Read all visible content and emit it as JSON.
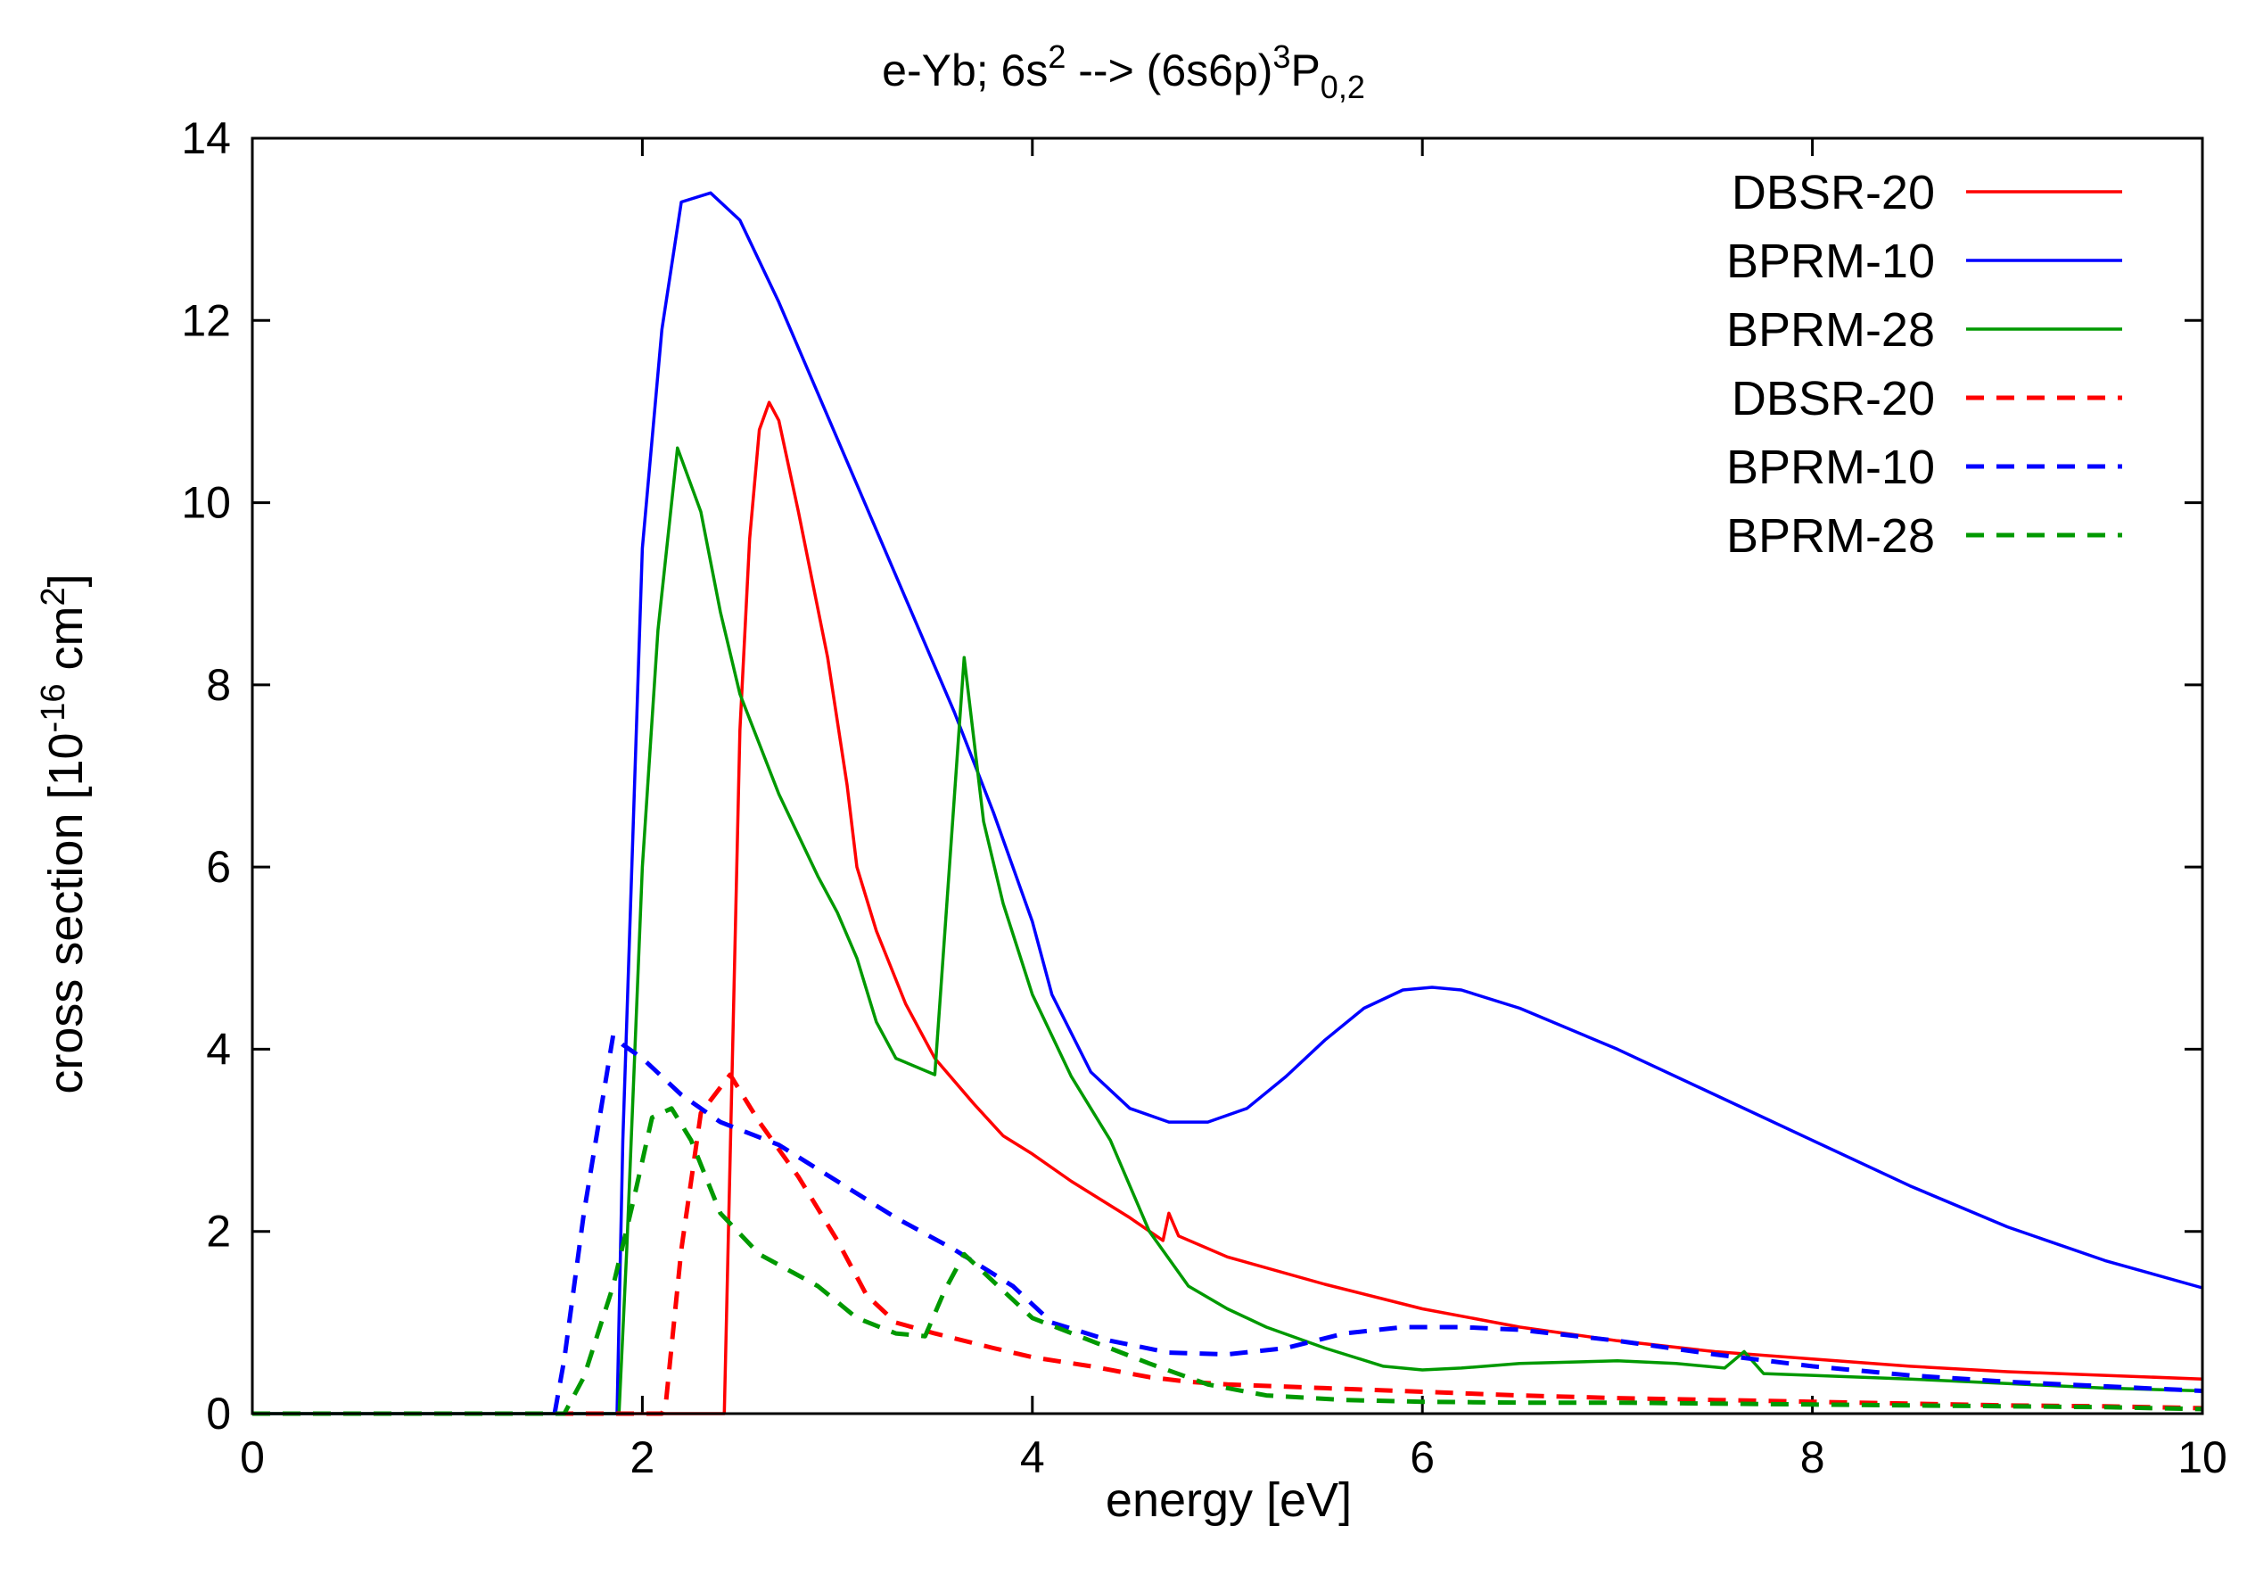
{
  "chart_data": {
    "type": "line",
    "title": {
      "pre": "e-Yb; 6s",
      "sup1": "2",
      "mid": " --> (6s6p)",
      "sup2": "3",
      "base": "P",
      "sub": "0,2"
    },
    "xlabel": "energy [eV]",
    "ylabel": {
      "pre": "cross section [10",
      "sup1": "-16",
      "mid": " cm",
      "sup2": "2",
      "post": "]"
    },
    "xlim": [
      0,
      10
    ],
    "ylim": [
      0,
      14
    ],
    "xticks": [
      0,
      2,
      4,
      6,
      8,
      10
    ],
    "yticks": [
      0,
      2,
      4,
      6,
      8,
      10,
      12,
      14
    ],
    "xtick_labels": [
      "0",
      "2",
      "4",
      "6",
      "8",
      "10"
    ],
    "ytick_labels": [
      "0",
      "2",
      "4",
      "6",
      "8",
      "10",
      "12",
      "14"
    ],
    "grid": false,
    "legend_position": "top-right",
    "series": [
      {
        "name": "DBSR-20",
        "color": "#ff0000",
        "dash": "solid",
        "points": [
          [
            0,
            0
          ],
          [
            2.4,
            0
          ],
          [
            2.42,
            0
          ],
          [
            2.5,
            7.5
          ],
          [
            2.55,
            9.6
          ],
          [
            2.6,
            10.8
          ],
          [
            2.65,
            11.1
          ],
          [
            2.7,
            10.9
          ],
          [
            2.8,
            9.9
          ],
          [
            2.95,
            8.3
          ],
          [
            3.05,
            6.9
          ],
          [
            3.1,
            6.0
          ],
          [
            3.2,
            5.3
          ],
          [
            3.35,
            4.5
          ],
          [
            3.5,
            3.9
          ],
          [
            3.7,
            3.4
          ],
          [
            3.85,
            3.05
          ],
          [
            4.0,
            2.85
          ],
          [
            4.2,
            2.55
          ],
          [
            4.5,
            2.15
          ],
          [
            4.67,
            1.9
          ],
          [
            4.7,
            2.2
          ],
          [
            4.75,
            1.95
          ],
          [
            5.0,
            1.72
          ],
          [
            5.5,
            1.42
          ],
          [
            6.0,
            1.15
          ],
          [
            6.5,
            0.95
          ],
          [
            7.0,
            0.8
          ],
          [
            7.5,
            0.68
          ],
          [
            8.0,
            0.6
          ],
          [
            8.5,
            0.52
          ],
          [
            9.0,
            0.46
          ],
          [
            9.5,
            0.42
          ],
          [
            10.0,
            0.38
          ]
        ]
      },
      {
        "name": "BPRM-10",
        "color": "#0000ff",
        "dash": "solid",
        "points": [
          [
            0,
            0
          ],
          [
            1.87,
            0
          ],
          [
            1.9,
            3.0
          ],
          [
            2.0,
            9.5
          ],
          [
            2.1,
            11.9
          ],
          [
            2.2,
            13.3
          ],
          [
            2.35,
            13.4
          ],
          [
            2.5,
            13.1
          ],
          [
            2.7,
            12.2
          ],
          [
            3.0,
            10.7
          ],
          [
            3.3,
            9.2
          ],
          [
            3.6,
            7.7
          ],
          [
            3.8,
            6.6
          ],
          [
            4.0,
            5.4
          ],
          [
            4.1,
            4.6
          ],
          [
            4.3,
            3.75
          ],
          [
            4.5,
            3.35
          ],
          [
            4.7,
            3.2
          ],
          [
            4.9,
            3.2
          ],
          [
            5.1,
            3.35
          ],
          [
            5.3,
            3.7
          ],
          [
            5.5,
            4.1
          ],
          [
            5.7,
            4.45
          ],
          [
            5.9,
            4.65
          ],
          [
            6.05,
            4.68
          ],
          [
            6.2,
            4.65
          ],
          [
            6.5,
            4.45
          ],
          [
            7.0,
            4.0
          ],
          [
            7.5,
            3.5
          ],
          [
            8.0,
            3.0
          ],
          [
            8.5,
            2.5
          ],
          [
            9.0,
            2.05
          ],
          [
            9.5,
            1.68
          ],
          [
            10.0,
            1.38
          ]
        ]
      },
      {
        "name": "BPRM-28",
        "color": "#009900",
        "dash": "solid",
        "points": [
          [
            0,
            0
          ],
          [
            1.88,
            0
          ],
          [
            1.92,
            1.8
          ],
          [
            2.0,
            6.0
          ],
          [
            2.08,
            8.6
          ],
          [
            2.18,
            10.6
          ],
          [
            2.3,
            9.9
          ],
          [
            2.4,
            8.8
          ],
          [
            2.5,
            7.9
          ],
          [
            2.7,
            6.8
          ],
          [
            2.9,
            5.9
          ],
          [
            3.0,
            5.5
          ],
          [
            3.1,
            5.0
          ],
          [
            3.2,
            4.3
          ],
          [
            3.3,
            3.9
          ],
          [
            3.5,
            3.72
          ],
          [
            3.65,
            8.3
          ],
          [
            3.75,
            6.5
          ],
          [
            3.85,
            5.6
          ],
          [
            4.0,
            4.6
          ],
          [
            4.2,
            3.7
          ],
          [
            4.4,
            3.0
          ],
          [
            4.6,
            2.0
          ],
          [
            4.8,
            1.4
          ],
          [
            5.0,
            1.15
          ],
          [
            5.2,
            0.95
          ],
          [
            5.5,
            0.72
          ],
          [
            5.8,
            0.52
          ],
          [
            6.0,
            0.48
          ],
          [
            6.2,
            0.5
          ],
          [
            6.5,
            0.55
          ],
          [
            7.0,
            0.58
          ],
          [
            7.3,
            0.55
          ],
          [
            7.55,
            0.5
          ],
          [
            7.65,
            0.68
          ],
          [
            7.75,
            0.44
          ],
          [
            8.0,
            0.42
          ],
          [
            8.5,
            0.38
          ],
          [
            9.0,
            0.33
          ],
          [
            9.5,
            0.28
          ],
          [
            10.0,
            0.25
          ]
        ]
      },
      {
        "name": "DBSR-20",
        "color": "#ff0000",
        "dash": "dashed",
        "points": [
          [
            0,
            0
          ],
          [
            2.1,
            0
          ],
          [
            2.12,
            0.1
          ],
          [
            2.2,
            1.8
          ],
          [
            2.3,
            3.3
          ],
          [
            2.45,
            3.72
          ],
          [
            2.6,
            3.2
          ],
          [
            2.8,
            2.6
          ],
          [
            3.0,
            1.9
          ],
          [
            3.15,
            1.3
          ],
          [
            3.3,
            1.0
          ],
          [
            3.5,
            0.88
          ],
          [
            3.8,
            0.72
          ],
          [
            4.0,
            0.62
          ],
          [
            4.3,
            0.52
          ],
          [
            4.6,
            0.4
          ],
          [
            4.8,
            0.35
          ],
          [
            5.0,
            0.32
          ],
          [
            5.5,
            0.28
          ],
          [
            6.0,
            0.24
          ],
          [
            6.5,
            0.2
          ],
          [
            7.0,
            0.17
          ],
          [
            7.5,
            0.15
          ],
          [
            8.0,
            0.13
          ],
          [
            8.5,
            0.11
          ],
          [
            9.0,
            0.09
          ],
          [
            9.5,
            0.08
          ],
          [
            10.0,
            0.06
          ]
        ]
      },
      {
        "name": "BPRM-10",
        "color": "#0000ff",
        "dash": "dashed",
        "points": [
          [
            0,
            0
          ],
          [
            1.55,
            0
          ],
          [
            1.6,
            0.6
          ],
          [
            1.7,
            2.2
          ],
          [
            1.85,
            4.15
          ],
          [
            1.9,
            4.05
          ],
          [
            2.0,
            3.9
          ],
          [
            2.2,
            3.5
          ],
          [
            2.4,
            3.2
          ],
          [
            2.7,
            2.95
          ],
          [
            3.0,
            2.55
          ],
          [
            3.3,
            2.15
          ],
          [
            3.6,
            1.8
          ],
          [
            3.9,
            1.4
          ],
          [
            4.1,
            1.0
          ],
          [
            4.4,
            0.8
          ],
          [
            4.7,
            0.67
          ],
          [
            5.0,
            0.65
          ],
          [
            5.3,
            0.72
          ],
          [
            5.6,
            0.88
          ],
          [
            5.9,
            0.95
          ],
          [
            6.2,
            0.95
          ],
          [
            6.5,
            0.92
          ],
          [
            7.0,
            0.8
          ],
          [
            7.5,
            0.65
          ],
          [
            8.0,
            0.52
          ],
          [
            8.5,
            0.42
          ],
          [
            9.0,
            0.35
          ],
          [
            9.5,
            0.3
          ],
          [
            10.0,
            0.25
          ]
        ]
      },
      {
        "name": "BPRM-28",
        "color": "#009900",
        "dash": "dashed",
        "points": [
          [
            0,
            0
          ],
          [
            1.6,
            0
          ],
          [
            1.7,
            0.4
          ],
          [
            1.85,
            1.4
          ],
          [
            1.95,
            2.3
          ],
          [
            2.05,
            3.25
          ],
          [
            2.15,
            3.35
          ],
          [
            2.25,
            3.0
          ],
          [
            2.4,
            2.2
          ],
          [
            2.6,
            1.75
          ],
          [
            2.9,
            1.4
          ],
          [
            3.1,
            1.05
          ],
          [
            3.3,
            0.88
          ],
          [
            3.45,
            0.85
          ],
          [
            3.55,
            1.35
          ],
          [
            3.65,
            1.75
          ],
          [
            3.8,
            1.45
          ],
          [
            4.0,
            1.05
          ],
          [
            4.3,
            0.8
          ],
          [
            4.6,
            0.55
          ],
          [
            4.9,
            0.32
          ],
          [
            5.2,
            0.2
          ],
          [
            5.6,
            0.15
          ],
          [
            6.0,
            0.13
          ],
          [
            6.5,
            0.12
          ],
          [
            7.0,
            0.12
          ],
          [
            7.5,
            0.11
          ],
          [
            8.0,
            0.1
          ],
          [
            8.5,
            0.09
          ],
          [
            9.0,
            0.08
          ],
          [
            9.5,
            0.07
          ],
          [
            10.0,
            0.05
          ]
        ]
      }
    ]
  }
}
